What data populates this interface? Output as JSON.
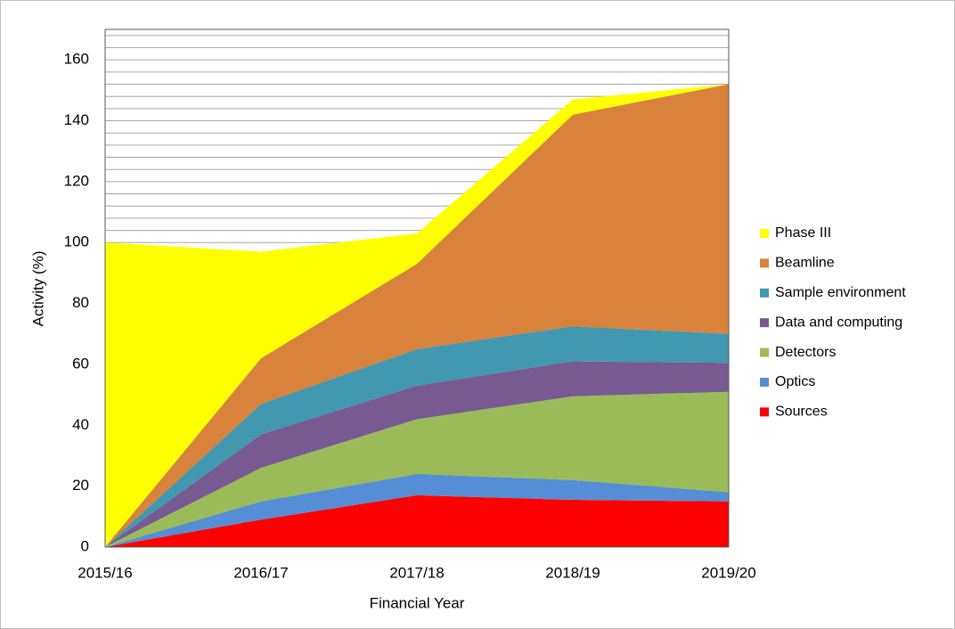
{
  "chart_data": {
    "type": "stacked_area",
    "x_label": "Financial Year",
    "y_label": "Activity (%)",
    "categories": [
      "2015/16",
      "2016/17",
      "2017/18",
      "2018/19",
      "2019/20"
    ],
    "series": [
      {
        "name": "Sources",
        "color": "#ff0000",
        "values": [
          0,
          9,
          17,
          15.5,
          15
        ]
      },
      {
        "name": "Optics",
        "color": "#558ed5",
        "values": [
          0,
          6,
          7,
          6.5,
          3
        ]
      },
      {
        "name": "Detectors",
        "color": "#9bbb59",
        "values": [
          0,
          11,
          18,
          27.5,
          33
        ]
      },
      {
        "name": "Data and computing",
        "color": "#775a91",
        "values": [
          0,
          11,
          11,
          11.5,
          9.5
        ]
      },
      {
        "name": "Sample environment",
        "color": "#4198b0",
        "values": [
          0,
          10,
          12,
          11.5,
          9.5
        ]
      },
      {
        "name": "Beamline",
        "color": "#d9823b",
        "values": [
          0,
          15,
          28,
          69.5,
          82
        ]
      },
      {
        "name": "Phase III",
        "color": "#ffff00",
        "values": [
          100,
          35,
          10,
          5,
          0
        ]
      }
    ],
    "ylim": [
      0,
      170
    ],
    "yticks": [
      0,
      20,
      40,
      60,
      80,
      100,
      120,
      140,
      160
    ],
    "grid": true,
    "minor_grid": [
      4,
      8,
      12,
      16,
      24,
      28,
      32,
      36,
      44,
      48,
      52,
      56,
      64,
      68,
      72,
      76,
      84,
      88,
      92,
      96,
      104,
      108,
      112,
      116,
      124,
      128,
      132,
      136,
      144,
      148,
      152,
      156,
      164,
      168
    ],
    "legend": "right"
  }
}
